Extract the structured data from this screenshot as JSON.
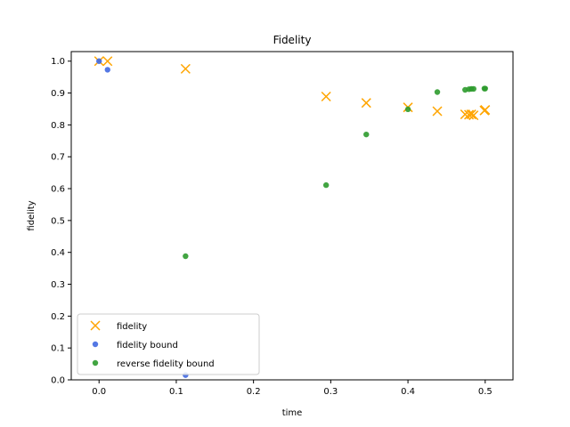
{
  "chart_data": {
    "type": "scatter",
    "title": "Fidelity",
    "xlabel": "time",
    "ylabel": "fidelity",
    "xlim": [
      -0.036,
      0.536
    ],
    "ylim": [
      0.0,
      1.03
    ],
    "xticks": [
      "0.0",
      "0.1",
      "0.2",
      "0.3",
      "0.4",
      "0.5"
    ],
    "yticks": [
      "0.0",
      "0.1",
      "0.2",
      "0.3",
      "0.4",
      "0.5",
      "0.6",
      "0.7",
      "0.8",
      "0.9",
      "1.0"
    ],
    "xtick_values": [
      0.0,
      0.1,
      0.2,
      0.3,
      0.4,
      0.5
    ],
    "ytick_values": [
      0.0,
      0.1,
      0.2,
      0.3,
      0.4,
      0.5,
      0.6,
      0.7,
      0.8,
      0.9,
      1.0
    ],
    "grid": false,
    "legend_position": "lower-left",
    "series": [
      {
        "name": "fidelity",
        "marker": "x",
        "color": "#FFA500",
        "points": [
          [
            0.0,
            1.0
          ],
          [
            0.011,
            1.0
          ],
          [
            0.112,
            0.976
          ],
          [
            0.294,
            0.889
          ],
          [
            0.346,
            0.869
          ],
          [
            0.4,
            0.855
          ],
          [
            0.438,
            0.843
          ],
          [
            0.474,
            0.833
          ],
          [
            0.479,
            0.832
          ],
          [
            0.482,
            0.833
          ],
          [
            0.485,
            0.83
          ],
          [
            0.499,
            0.845
          ],
          [
            0.5,
            0.847
          ]
        ]
      },
      {
        "name": "fidelity bound",
        "marker": "circle",
        "color": "#4169E1",
        "points": [
          [
            0.0,
            1.0
          ],
          [
            0.011,
            0.973
          ],
          [
            0.112,
            0.015
          ]
        ]
      },
      {
        "name": "reverse fidelity bound",
        "marker": "circle",
        "color": "#2E9B2E",
        "points": [
          [
            0.112,
            0.388
          ],
          [
            0.294,
            0.611
          ],
          [
            0.346,
            0.77
          ],
          [
            0.4,
            0.849
          ],
          [
            0.438,
            0.903
          ],
          [
            0.474,
            0.91
          ],
          [
            0.479,
            0.912
          ],
          [
            0.482,
            0.913
          ],
          [
            0.485,
            0.913
          ],
          [
            0.499,
            0.914
          ],
          [
            0.5,
            0.914
          ]
        ]
      }
    ]
  }
}
